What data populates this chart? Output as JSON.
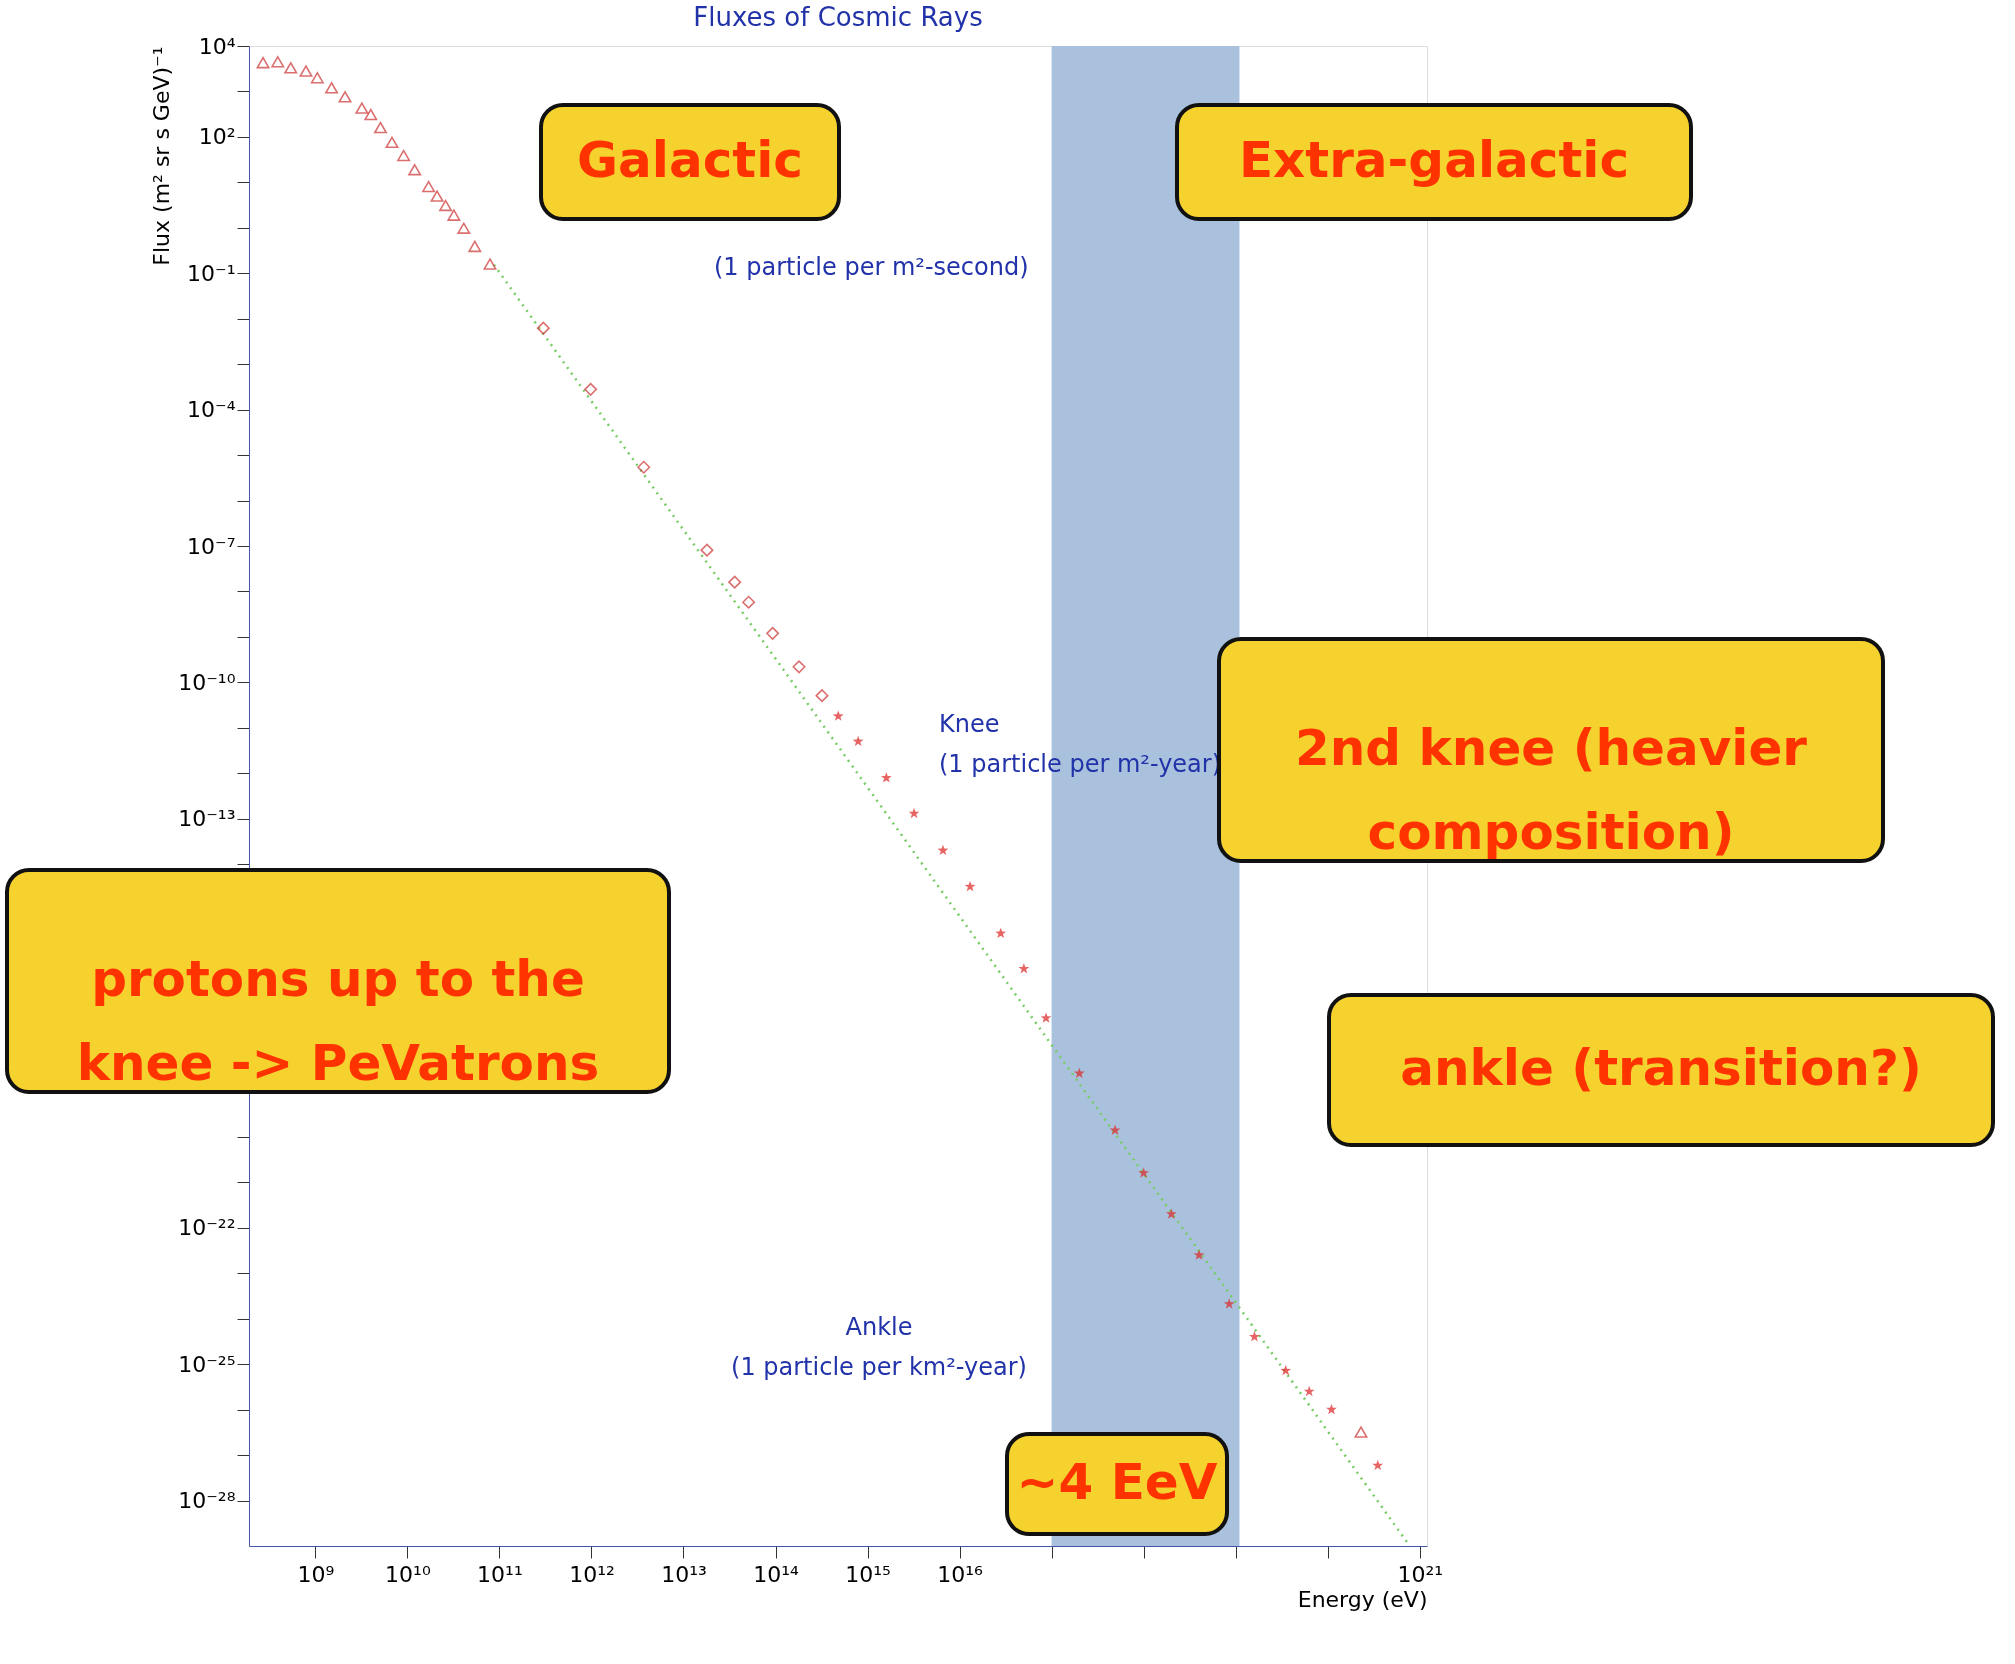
{
  "chart_data": {
    "type": "scatter",
    "title": "Fluxes of Cosmic Rays",
    "xlabel": "Energy (eV)",
    "ylabel": "Flux (m² sr s GeV)⁻¹",
    "log": "xy",
    "grid": false,
    "xlim": [
      190000000.0,
      1.2e+21
    ],
    "ylim": [
      1e-29,
      10000.0
    ],
    "xticks": [
      {
        "value": 1000000000.0,
        "label": "10⁹"
      },
      {
        "value": 10000000000.0,
        "label": "10¹⁰"
      },
      {
        "value": 100000000000.0,
        "label": "10¹¹"
      },
      {
        "value": 1000000000000.0,
        "label": "10¹²"
      },
      {
        "value": 10000000000000.0,
        "label": "10¹³"
      },
      {
        "value": 100000000000000.0,
        "label": "10¹⁴"
      },
      {
        "value": 1000000000000000.0,
        "label": "10¹⁵"
      },
      {
        "value": 1e+16,
        "label": "10¹⁶"
      },
      {
        "value": 1e+17,
        "label": null
      },
      {
        "value": 1e+18,
        "label": null
      },
      {
        "value": 1e+19,
        "label": null
      },
      {
        "value": 1e+20,
        "label": null
      },
      {
        "value": 1e+21,
        "label": "10²¹"
      }
    ],
    "yticks": [
      {
        "value": 10000.0,
        "label": "10⁴"
      },
      {
        "value": 1000.0,
        "label": null
      },
      {
        "value": 100.0,
        "label": "10²"
      },
      {
        "value": 10.0,
        "label": null
      },
      {
        "value": 1,
        "label": null
      },
      {
        "value": 0.1,
        "label": "10⁻¹"
      },
      {
        "value": 0.01,
        "label": null
      },
      {
        "value": 0.001,
        "label": null
      },
      {
        "value": 0.0001,
        "label": "10⁻⁴"
      },
      {
        "value": 1e-05,
        "label": null
      },
      {
        "value": 1e-06,
        "label": null
      },
      {
        "value": 1e-07,
        "label": "10⁻⁷"
      },
      {
        "value": 1e-08,
        "label": null
      },
      {
        "value": 1e-09,
        "label": null
      },
      {
        "value": 1e-10,
        "label": "10⁻¹⁰"
      },
      {
        "value": 1e-11,
        "label": null
      },
      {
        "value": 1e-12,
        "label": null
      },
      {
        "value": 1e-13,
        "label": "10⁻¹³"
      },
      {
        "value": 1e-14,
        "label": null
      },
      {
        "value": 1e-15,
        "label": null
      },
      {
        "value": 1e-16,
        "label": null
      },
      {
        "value": 1e-17,
        "label": null
      },
      {
        "value": 1e-18,
        "label": null
      },
      {
        "value": 1e-19,
        "label": null
      },
      {
        "value": 1e-20,
        "label": null
      },
      {
        "value": 1e-21,
        "label": null
      },
      {
        "value": 1e-22,
        "label": "10⁻²²"
      },
      {
        "value": 1e-23,
        "label": null
      },
      {
        "value": 1e-24,
        "label": null
      },
      {
        "value": 1e-25,
        "label": "10⁻²⁵"
      },
      {
        "value": 1e-26,
        "label": null
      },
      {
        "value": 1e-27,
        "label": null
      },
      {
        "value": 1e-28,
        "label": "10⁻²⁸"
      }
    ],
    "bands": [
      {
        "axis": "x",
        "from": 1e+17,
        "to": 1.1e+19,
        "color": "#a9c1dc"
      }
    ],
    "series": [
      {
        "type": "line",
        "color": "#77cc66",
        "line_style": "dotted",
        "x": [
          87000000000.0,
          7.8e+20
        ],
        "values": [
          0.155,
          1e-29
        ]
      },
      {
        "color": "#cc3333",
        "marker": "triangle",
        "x": [
          270000000.0,
          390000000.0,
          540000000.0,
          790000000.0,
          1050000000.0,
          1500000000.0,
          2100000000.0,
          3200000000.0,
          4000000000.0,
          5100000000.0,
          6800000000.0,
          9100000000.0,
          12000000000.0,
          17000000000.0,
          21000000000.0,
          26000000000.0,
          32000000000.0,
          41000000000.0,
          54000000000.0,
          79000000000.0,
          2.3e+20
        ],
        "values": [
          4300,
          4500,
          3300,
          2800,
          2000,
          1200,
          760,
          430,
          310,
          160,
          76,
          39,
          19,
          8.1,
          5.0,
          3.1,
          1.9,
          0.98,
          0.39,
          0.16,
          3.2e-27
        ]
      },
      {
        "color": "#cc3333",
        "marker": "diamond",
        "x": [
          300000000000.0,
          980000000000.0,
          3700000000000.0,
          18000000000000.0,
          36000000000000.0,
          51000000000000.0,
          93000000000000.0,
          180000000000000.0,
          320000000000000.0
        ],
        "values": [
          0.0062,
          0.00028,
          5.4e-06,
          8.1e-08,
          1.6e-08,
          5.8e-09,
          1.2e-09,
          2.2e-10,
          5.1e-11
        ]
      },
      {
        "color": "#dd2222",
        "marker": "star",
        "x": [
          480000000000000.0,
          790000000000000.0,
          1600000000000000.0,
          3200000000000000.0,
          6600000000000000.0,
          1.3e+16,
          2.8e+16,
          5e+16,
          8.7e+16,
          2e+17,
          4.9e+17,
          1e+18,
          2e+18,
          4e+18,
          8.5e+18,
          1.6e+19,
          3.5e+19,
          6.3e+19,
          1.1e+20,
          3.5e+20
        ],
        "values": [
          1.8e-11,
          5e-12,
          7.9e-13,
          1.3e-13,
          2e-14,
          3.2e-15,
          3e-16,
          5e-17,
          4.1e-18,
          2.5e-19,
          1.4e-20,
          1.6e-21,
          2e-22,
          2.5e-23,
          2.1e-24,
          4e-25,
          7.2e-26,
          2.5e-26,
          1e-26,
          5.9e-28
        ]
      }
    ],
    "annotations": [
      "(1 particle per m²-second)",
      "Knee\n(1 particle per m²-year)",
      "Ankle\n(1 particle per km²-year)",
      "Galactic",
      "Extra-galactic",
      "2nd knee (heavier composition)",
      "protons up to the knee -> PeVatrons",
      "ankle (transition?)",
      "~4 EeV"
    ]
  }
}
